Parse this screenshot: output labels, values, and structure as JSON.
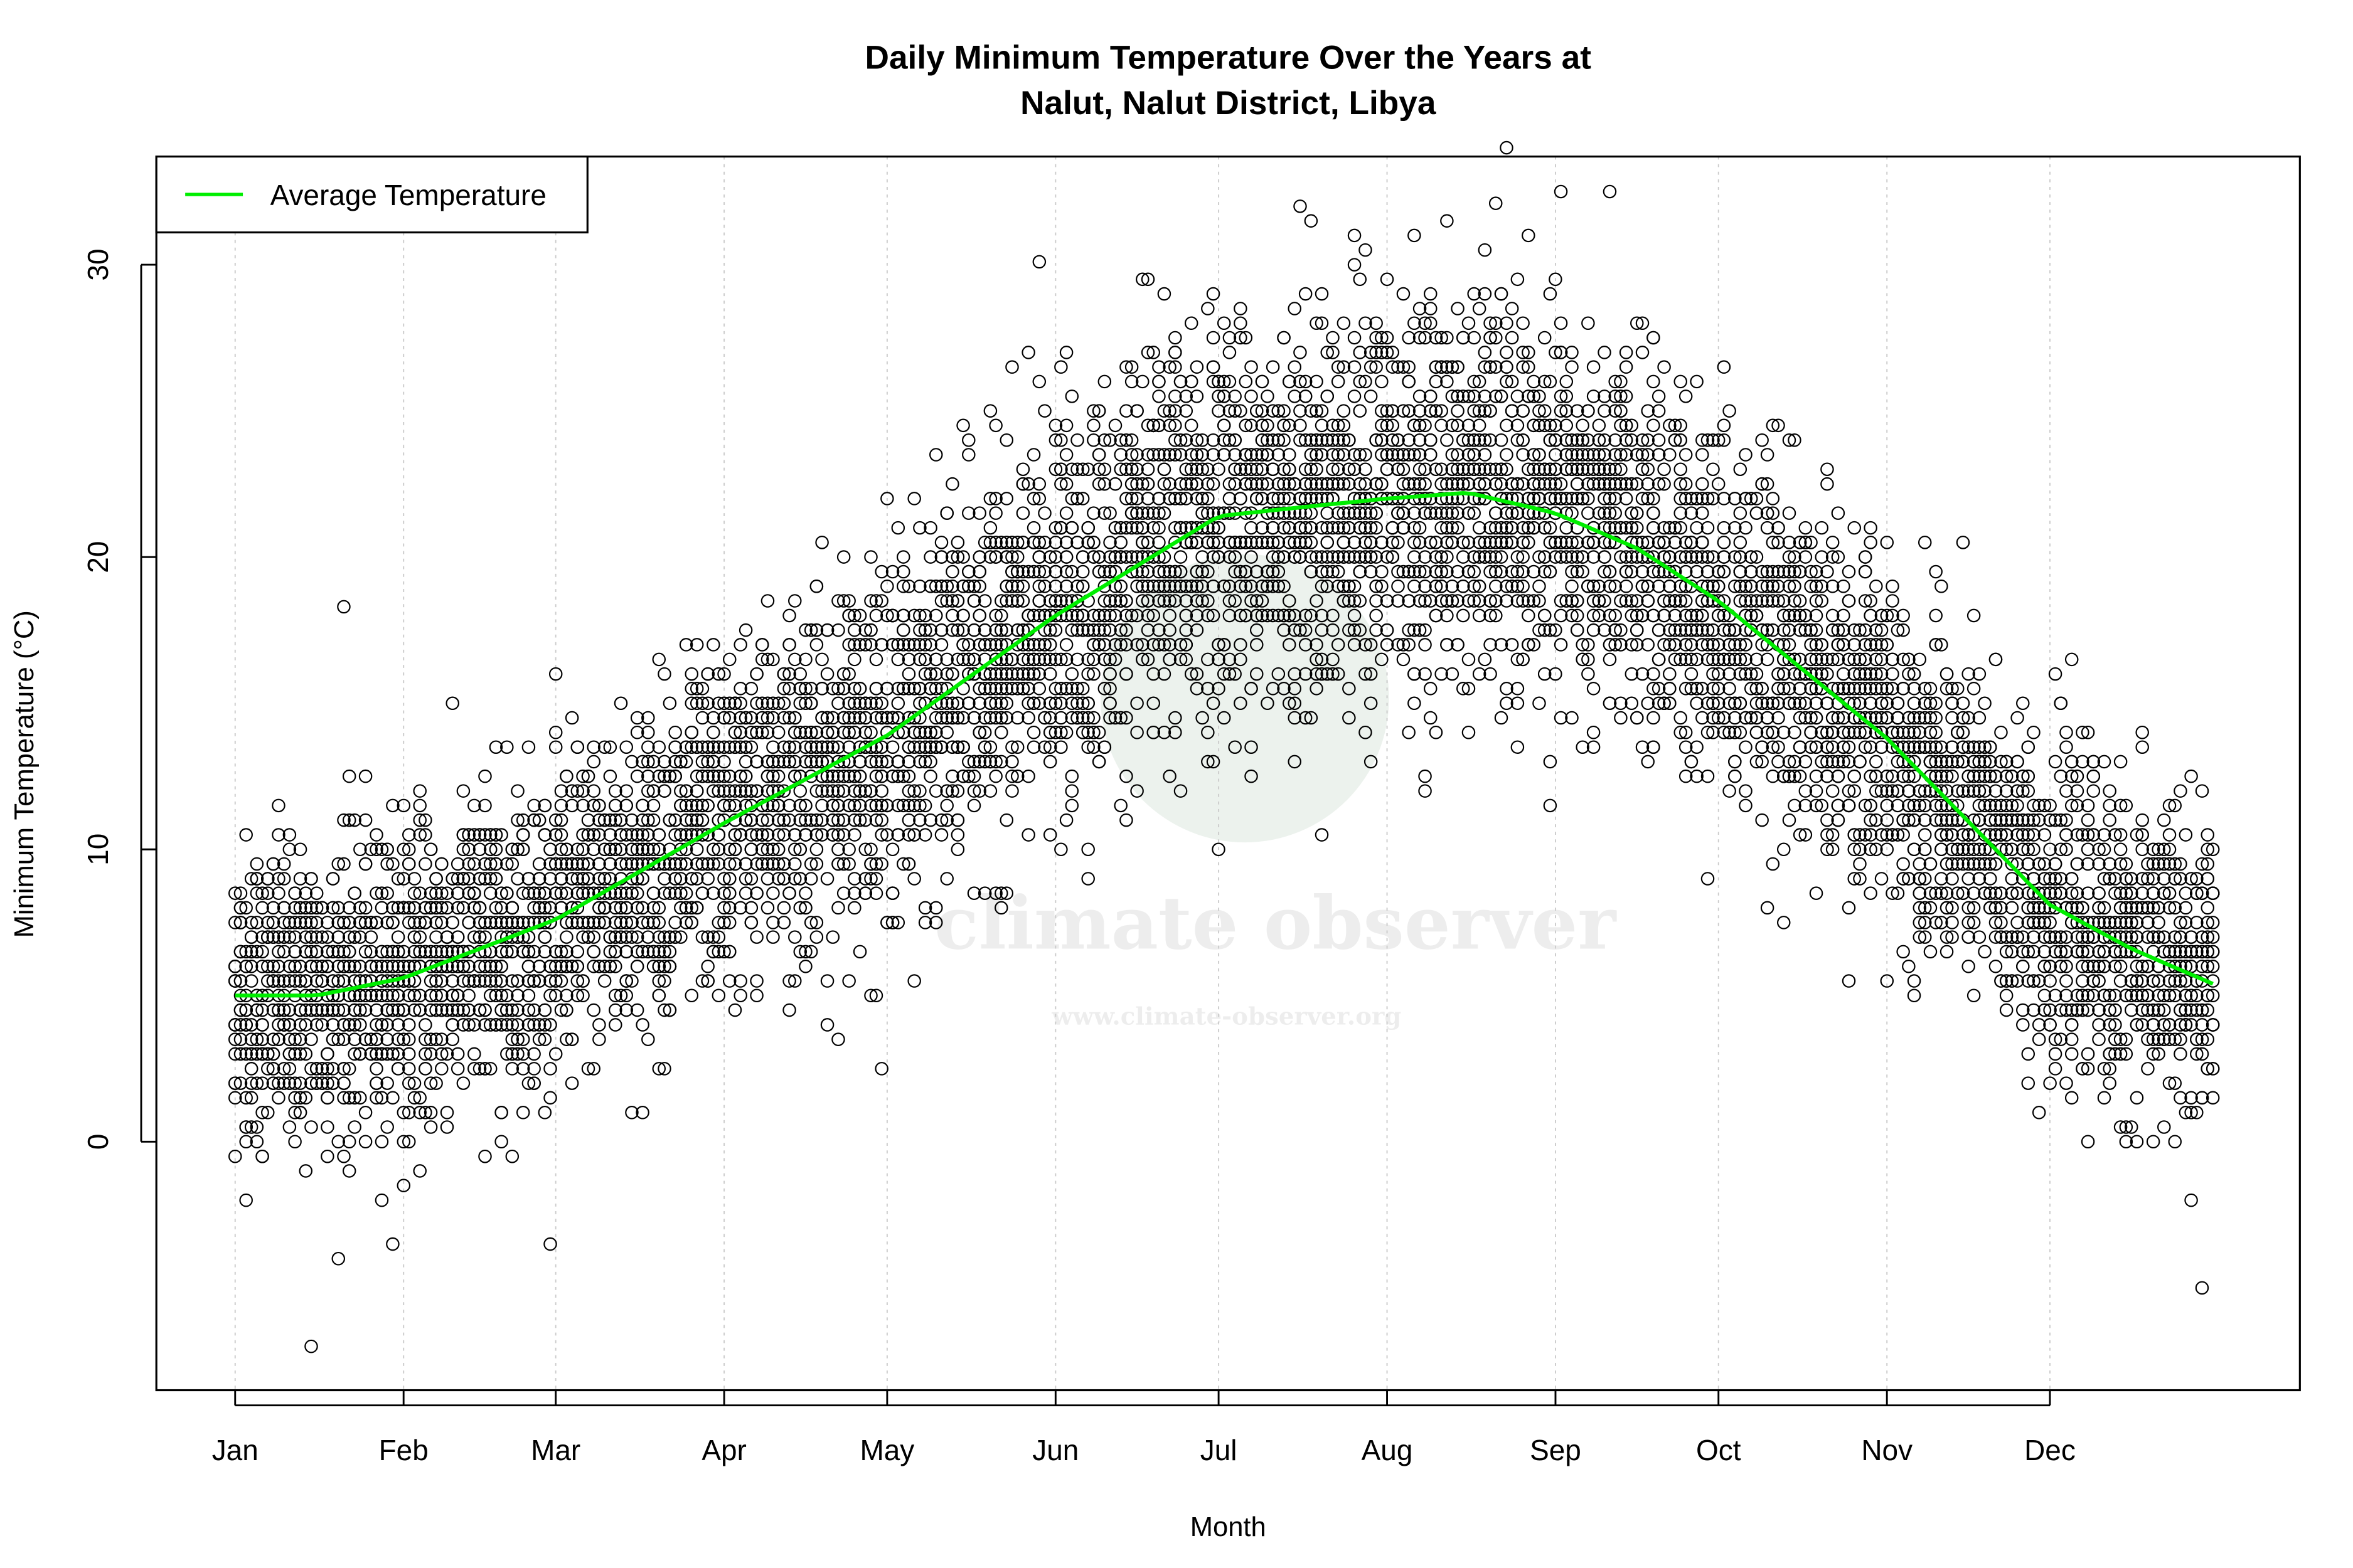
{
  "chart_data": {
    "type": "scatter",
    "title_line1": "Daily Minimum Temperature Over the Years at",
    "title_line2": "Nalut, Nalut District, Libya",
    "xlabel": "Month",
    "ylabel": "Minimum Temperature (°C)",
    "x_ticks": [
      "Jan",
      "Feb",
      "Mar",
      "Apr",
      "May",
      "Jun",
      "Jul",
      "Aug",
      "Sep",
      "Oct",
      "Nov",
      "Dec"
    ],
    "x_tick_days": [
      0,
      31,
      59,
      90,
      120,
      151,
      181,
      212,
      243,
      273,
      304,
      334
    ],
    "y_ticks": [
      0,
      10,
      20,
      30
    ],
    "ylim": [
      -8.5,
      33.7
    ],
    "xlim_days": [
      -14.5,
      380
    ],
    "grid": "vertical dotted at month ticks",
    "legend": {
      "position": "top-left",
      "entries": [
        {
          "label": "Average Temperature",
          "color": "#00ee00"
        }
      ]
    },
    "average_curve": {
      "name": "Average Temperature",
      "color": "#00ee00",
      "day": [
        0,
        15,
        31,
        59,
        90,
        120,
        151,
        181,
        196,
        212,
        227,
        243,
        258,
        273,
        304,
        334,
        349,
        364
      ],
      "temp": [
        5.0,
        5.0,
        5.6,
        7.6,
        10.9,
        13.9,
        18.0,
        21.4,
        21.7,
        22.0,
        22.2,
        21.5,
        20.3,
        18.5,
        13.8,
        8.1,
        6.6,
        5.4
      ]
    },
    "scatter_marker": {
      "shape": "open circle",
      "color": "#000000"
    },
    "notable_points": [
      {
        "day": 14,
        "temp": -7.0
      },
      {
        "day": 20,
        "temp": 18.3
      },
      {
        "day": 148,
        "temp": 30.1
      },
      {
        "day": 196,
        "temp": 32.0
      },
      {
        "day": 232,
        "temp": 32.1
      },
      {
        "day": 362,
        "temp": -5.0
      }
    ]
  },
  "watermark": {
    "name": "climate observer",
    "url": "www.climate-observer.org"
  }
}
